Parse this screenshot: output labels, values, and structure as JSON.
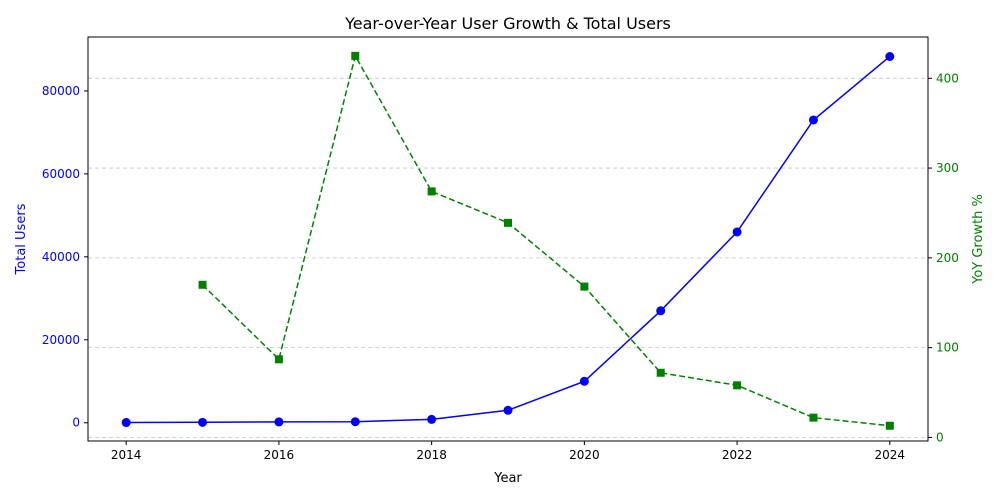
{
  "chart_data": {
    "type": "line",
    "title": "Year-over-Year User Growth & Total Users",
    "xlabel": "Year",
    "x": [
      2014,
      2015,
      2016,
      2017,
      2018,
      2019,
      2020,
      2021,
      2022,
      2023,
      2024
    ],
    "x_ticks": [
      2014,
      2016,
      2018,
      2020,
      2022,
      2024
    ],
    "xlim": [
      2013.5,
      2024.5
    ],
    "grid": "horizontal dashed",
    "y_left": {
      "label": "Total Users",
      "color": "#0000ff",
      "ylim": [
        -4400,
        93000
      ],
      "ticks": [
        0,
        20000,
        40000,
        60000,
        80000
      ]
    },
    "y_right": {
      "label": "YoY Growth %",
      "color": "#008000",
      "ylim": [
        -4,
        446
      ],
      "ticks": [
        0,
        100,
        200,
        300,
        400
      ]
    },
    "series": [
      {
        "axis": "left",
        "color": "#0000ff",
        "line_style": "solid",
        "marker": "circle",
        "values": [
          50,
          100,
          200,
          250,
          800,
          3000,
          10000,
          27000,
          46000,
          73000,
          88300
        ]
      },
      {
        "axis": "right",
        "color": "#008000",
        "line_style": "dashed",
        "marker": "square",
        "values": [
          null,
          170,
          87,
          425,
          274,
          239,
          168,
          72,
          58,
          22,
          13
        ]
      }
    ]
  }
}
